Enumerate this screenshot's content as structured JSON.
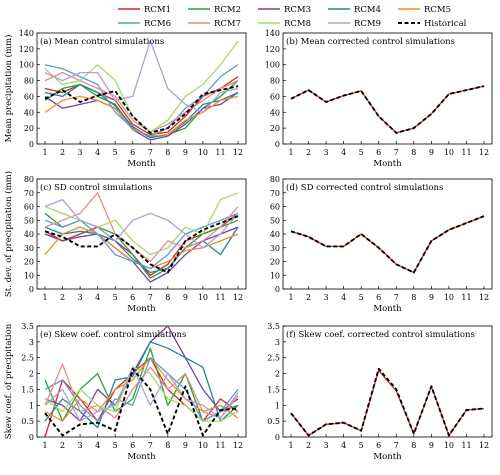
{
  "legend": {
    "entries": [
      {
        "name": "RCM1",
        "color": "#d62728",
        "dash": false
      },
      {
        "name": "RCM2",
        "color": "#2ca02c",
        "dash": false
      },
      {
        "name": "RCM3",
        "color": "#7b3f9e",
        "dash": false
      },
      {
        "name": "RCM4",
        "color": "#1b8a9c",
        "dash": false
      },
      {
        "name": "RCM5",
        "color": "#f28e2b",
        "dash": false
      },
      {
        "name": "RCM6",
        "color": "#5a9bd4",
        "dash": false
      },
      {
        "name": "RCM7",
        "color": "#e38c8c",
        "dash": false
      },
      {
        "name": "RCM8",
        "color": "#a6d96a",
        "dash": false
      },
      {
        "name": "RCM9",
        "color": "#b39ddb",
        "dash": false
      },
      {
        "name": "Historical",
        "color": "#000000",
        "dash": true
      }
    ]
  },
  "chart_data": [
    {
      "type": "line",
      "title": "(a) Mean control simulations",
      "xlabel": "Month",
      "ylabel": "Mean precipitation (mm)",
      "x": [
        1,
        2,
        3,
        4,
        5,
        6,
        7,
        8,
        9,
        10,
        11,
        12
      ],
      "xticks": [
        1,
        2,
        3,
        4,
        5,
        6,
        7,
        8,
        9,
        10,
        11,
        12
      ],
      "ylim": [
        0,
        140
      ],
      "yticks": [
        0,
        20,
        40,
        60,
        80,
        100,
        120,
        140
      ],
      "series": [
        {
          "name": "RCM1",
          "values": [
            70,
            65,
            75,
            65,
            55,
            25,
            12,
            15,
            35,
            60,
            70,
            85
          ]
        },
        {
          "name": "RCM2",
          "values": [
            55,
            70,
            75,
            60,
            50,
            20,
            8,
            12,
            20,
            45,
            60,
            80
          ]
        },
        {
          "name": "RCM3",
          "values": [
            60,
            45,
            50,
            55,
            45,
            18,
            5,
            10,
            25,
            45,
            50,
            65
          ]
        },
        {
          "name": "RCM4",
          "values": [
            65,
            60,
            75,
            65,
            48,
            22,
            8,
            12,
            28,
            50,
            55,
            65
          ]
        },
        {
          "name": "RCM5",
          "values": [
            40,
            55,
            60,
            55,
            45,
            18,
            10,
            12,
            30,
            40,
            55,
            60
          ]
        },
        {
          "name": "RCM6",
          "values": [
            100,
            95,
            85,
            75,
            40,
            20,
            10,
            20,
            45,
            60,
            85,
            100
          ]
        },
        {
          "name": "RCM7",
          "values": [
            80,
            90,
            80,
            70,
            60,
            30,
            15,
            25,
            40,
            55,
            70,
            80
          ]
        },
        {
          "name": "RCM8",
          "values": [
            95,
            75,
            80,
            100,
            80,
            35,
            15,
            30,
            60,
            75,
            100,
            130
          ]
        },
        {
          "name": "RCM9",
          "values": [
            90,
            80,
            90,
            90,
            55,
            60,
            130,
            70,
            50,
            40,
            65,
            70
          ]
        },
        {
          "name": "Historical",
          "values": [
            57,
            68,
            53,
            61,
            67,
            35,
            14,
            20,
            38,
            63,
            68,
            73
          ]
        }
      ]
    },
    {
      "type": "line",
      "title": "(b) Mean corrected control simulations",
      "xlabel": "Month",
      "ylabel": "",
      "x": [
        1,
        2,
        3,
        4,
        5,
        6,
        7,
        8,
        9,
        10,
        11,
        12
      ],
      "xticks": [
        1,
        2,
        3,
        4,
        5,
        6,
        7,
        8,
        9,
        10,
        11,
        12
      ],
      "ylim": [
        0,
        140
      ],
      "yticks": [
        0,
        20,
        40,
        60,
        80,
        100,
        120,
        140
      ],
      "series": [
        {
          "name": "RCM1",
          "values": [
            57,
            68,
            53,
            61,
            67,
            35,
            14,
            20,
            38,
            63,
            68,
            73
          ]
        },
        {
          "name": "Historical",
          "values": [
            57,
            68,
            53,
            61,
            67,
            35,
            14,
            20,
            38,
            63,
            68,
            73
          ]
        }
      ]
    },
    {
      "type": "line",
      "title": "(c) SD control simulations",
      "xlabel": "Month",
      "ylabel": "St. dev. of precipitation (mm)",
      "x": [
        1,
        2,
        3,
        4,
        5,
        6,
        7,
        8,
        9,
        10,
        11,
        12
      ],
      "xticks": [
        1,
        2,
        3,
        4,
        5,
        6,
        7,
        8,
        9,
        10,
        11,
        12
      ],
      "ylim": [
        0,
        80
      ],
      "yticks": [
        0,
        10,
        20,
        30,
        40,
        50,
        60,
        70,
        80
      ],
      "series": [
        {
          "name": "RCM1",
          "values": [
            42,
            35,
            40,
            45,
            35,
            25,
            10,
            18,
            35,
            40,
            45,
            55
          ]
        },
        {
          "name": "RCM2",
          "values": [
            55,
            45,
            50,
            45,
            40,
            25,
            8,
            15,
            30,
            40,
            45,
            50
          ]
        },
        {
          "name": "RCM3",
          "values": [
            40,
            35,
            38,
            40,
            30,
            20,
            5,
            12,
            25,
            35,
            40,
            45
          ]
        },
        {
          "name": "RCM4",
          "values": [
            45,
            40,
            42,
            40,
            35,
            22,
            12,
            15,
            30,
            35,
            25,
            45
          ]
        },
        {
          "name": "RCM5",
          "values": [
            25,
            40,
            45,
            40,
            30,
            20,
            15,
            20,
            28,
            30,
            35,
            40
          ]
        },
        {
          "name": "RCM6",
          "values": [
            50,
            45,
            50,
            40,
            25,
            20,
            15,
            25,
            40,
            45,
            50,
            55
          ]
        },
        {
          "name": "RCM7",
          "values": [
            45,
            50,
            55,
            70,
            40,
            30,
            20,
            35,
            30,
            35,
            45,
            60
          ]
        },
        {
          "name": "RCM8",
          "values": [
            60,
            55,
            50,
            45,
            50,
            35,
            25,
            30,
            45,
            40,
            65,
            70
          ]
        },
        {
          "name": "RCM9",
          "values": [
            60,
            65,
            50,
            45,
            35,
            50,
            55,
            50,
            40,
            30,
            40,
            55
          ]
        },
        {
          "name": "Historical",
          "values": [
            42,
            38,
            31,
            31,
            40,
            30,
            18,
            12,
            35,
            43,
            48,
            53
          ]
        }
      ]
    },
    {
      "type": "line",
      "title": "(d) SD corrected control simulations",
      "xlabel": "Month",
      "ylabel": "",
      "x": [
        1,
        2,
        3,
        4,
        5,
        6,
        7,
        8,
        9,
        10,
        11,
        12
      ],
      "xticks": [
        1,
        2,
        3,
        4,
        5,
        6,
        7,
        8,
        9,
        10,
        11,
        12
      ],
      "ylim": [
        0,
        80
      ],
      "yticks": [
        0,
        10,
        20,
        30,
        40,
        50,
        60,
        70,
        80
      ],
      "series": [
        {
          "name": "RCM1",
          "values": [
            42,
            38,
            31,
            31,
            40,
            30,
            18,
            12,
            35,
            43,
            48,
            53
          ]
        },
        {
          "name": "Historical",
          "values": [
            42,
            38,
            31,
            31,
            40,
            30,
            18,
            12,
            35,
            43,
            48,
            53
          ]
        }
      ]
    },
    {
      "type": "line",
      "title": "(e) Skew coef. control simulations",
      "xlabel": "Month",
      "ylabel": "Skew coef. of precipitation",
      "x": [
        1,
        2,
        3,
        4,
        5,
        6,
        7,
        8,
        9,
        10,
        11,
        12
      ],
      "xticks": [
        1,
        2,
        3,
        4,
        5,
        6,
        7,
        8,
        9,
        10,
        11,
        12
      ],
      "ylim": [
        0,
        3.5
      ],
      "yticks": [
        0,
        0.5,
        1,
        1.5,
        2,
        2.5,
        3,
        3.5
      ],
      "series": [
        {
          "name": "RCM1",
          "values": [
            0,
            1.8,
            1.2,
            0.5,
            1.5,
            2.0,
            2.5,
            1.5,
            1.0,
            0.5,
            1.2,
            0.8
          ]
        },
        {
          "name": "RCM2",
          "values": [
            1.8,
            0.5,
            1.5,
            2.0,
            0.8,
            1.2,
            2.8,
            1.0,
            2.0,
            0.5,
            0.8,
            1.0
          ]
        },
        {
          "name": "RCM3",
          "values": [
            1.2,
            1.0,
            0.5,
            1.5,
            1.0,
            2.0,
            3.0,
            3.5,
            2.5,
            1.5,
            0.8,
            1.2
          ]
        },
        {
          "name": "RCM4",
          "values": [
            0.5,
            1.2,
            0.8,
            0.3,
            1.8,
            1.9,
            3.0,
            2.8,
            2.5,
            2.2,
            0.5,
            1.0
          ]
        },
        {
          "name": "RCM5",
          "values": [
            0.8,
            0.5,
            1.2,
            0.8,
            1.5,
            1.8,
            2.5,
            1.8,
            1.2,
            0.8,
            1.0,
            0.6
          ]
        },
        {
          "name": "RCM6",
          "values": [
            1.5,
            1.8,
            1.0,
            0.5,
            1.2,
            1.0,
            2.5,
            2.0,
            1.5,
            0.5,
            0.8,
            1.5
          ]
        },
        {
          "name": "RCM7",
          "values": [
            1.0,
            2.3,
            0.8,
            1.0,
            0.6,
            1.5,
            2.2,
            1.5,
            2.0,
            0.8,
            0.6,
            1.3
          ]
        },
        {
          "name": "RCM8",
          "values": [
            1.2,
            0.8,
            1.5,
            1.0,
            0.8,
            2.2,
            2.0,
            1.2,
            1.0,
            0.5,
            0.5,
            0.8
          ]
        },
        {
          "name": "RCM9",
          "values": [
            1.0,
            1.5,
            0.5,
            0.8,
            1.0,
            2.2,
            1.0,
            2.0,
            1.2,
            1.0,
            0.6,
            1.4
          ]
        },
        {
          "name": "Historical",
          "values": [
            0.75,
            0.05,
            0.4,
            0.45,
            0.2,
            2.15,
            1.5,
            0.1,
            1.6,
            0.05,
            0.85,
            0.9
          ]
        }
      ]
    },
    {
      "type": "line",
      "title": "(f) Skew coef. corrected control simulations",
      "xlabel": "Month",
      "ylabel": "",
      "x": [
        1,
        2,
        3,
        4,
        5,
        6,
        7,
        8,
        9,
        10,
        11,
        12
      ],
      "xticks": [
        1,
        2,
        3,
        4,
        5,
        6,
        7,
        8,
        9,
        10,
        11,
        12
      ],
      "ylim": [
        0,
        3.5
      ],
      "yticks": [
        0,
        0.5,
        1,
        1.5,
        2,
        2.5,
        3,
        3.5
      ],
      "series": [
        {
          "name": "RCM1",
          "values": [
            0.75,
            0.05,
            0.4,
            0.45,
            0.2,
            2.1,
            1.45,
            0.1,
            1.6,
            0.05,
            0.85,
            0.9
          ]
        },
        {
          "name": "Historical",
          "values": [
            0.75,
            0.05,
            0.4,
            0.45,
            0.2,
            2.15,
            1.5,
            0.1,
            1.6,
            0.05,
            0.85,
            0.9
          ]
        }
      ]
    }
  ]
}
